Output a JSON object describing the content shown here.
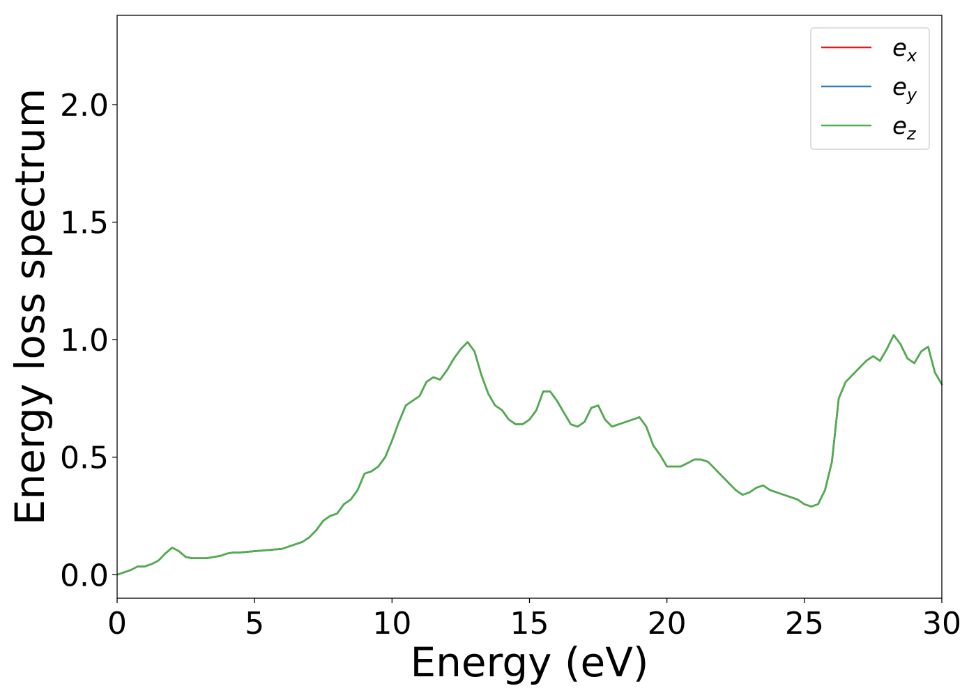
{
  "chart_data": {
    "type": "line",
    "title": "",
    "xlabel": "Energy (eV)",
    "ylabel": "Energy loss spectrum",
    "xlim": [
      0,
      30
    ],
    "ylim": [
      -0.1,
      2.38
    ],
    "xticks": [
      0,
      5,
      10,
      15,
      20,
      25,
      30
    ],
    "xtick_labels": [
      "0",
      "5",
      "10",
      "15",
      "20",
      "25",
      "30"
    ],
    "yticks": [
      0.0,
      0.5,
      1.0,
      1.5,
      2.0
    ],
    "ytick_labels": [
      "0.0",
      "0.5",
      "1.0",
      "1.5",
      "2.0"
    ],
    "grid": false,
    "legend_position": "top-right",
    "x": [
      0,
      0.25,
      0.5,
      0.75,
      1.0,
      1.25,
      1.5,
      1.75,
      2.0,
      2.25,
      2.5,
      2.75,
      3.0,
      3.25,
      3.5,
      3.75,
      4.0,
      4.25,
      4.5,
      5.0,
      5.5,
      6.0,
      6.5,
      6.75,
      7.0,
      7.25,
      7.5,
      7.75,
      8.0,
      8.25,
      8.5,
      8.75,
      9.0,
      9.25,
      9.5,
      9.75,
      10.0,
      10.25,
      10.5,
      10.75,
      11.0,
      11.25,
      11.5,
      11.75,
      12.0,
      12.25,
      12.5,
      12.75,
      13.0,
      13.25,
      13.5,
      13.75,
      14.0,
      14.25,
      14.5,
      14.75,
      15.0,
      15.25,
      15.5,
      15.75,
      16.0,
      16.25,
      16.5,
      16.75,
      17.0,
      17.25,
      17.5,
      17.75,
      18.0,
      18.25,
      18.5,
      18.75,
      19.0,
      19.25,
      19.5,
      19.75,
      20.0,
      20.5,
      21.0,
      21.25,
      21.5,
      21.75,
      22.0,
      22.25,
      22.5,
      22.75,
      23.0,
      23.25,
      23.5,
      23.75,
      24.0,
      24.25,
      24.5,
      24.75,
      25.0,
      25.25,
      25.5,
      25.75,
      26.0,
      26.25,
      26.5,
      26.75,
      27.0,
      27.25,
      27.5,
      27.75,
      28.0,
      28.25,
      28.5,
      28.75,
      29.0,
      29.25,
      29.5,
      29.75,
      30.0
    ],
    "series": [
      {
        "name": "e_x",
        "label": "e",
        "subscript": "x",
        "color": "#e41a1c",
        "values": [
          0.0,
          0.01,
          0.02,
          0.035,
          0.035,
          0.045,
          0.06,
          0.09,
          0.115,
          0.1,
          0.075,
          0.07,
          0.07,
          0.07,
          0.075,
          0.08,
          0.09,
          0.095,
          0.095,
          0.1,
          0.105,
          0.11,
          0.13,
          0.14,
          0.16,
          0.19,
          0.23,
          0.25,
          0.26,
          0.3,
          0.32,
          0.36,
          0.43,
          0.44,
          0.46,
          0.5,
          0.57,
          0.65,
          0.72,
          0.74,
          0.76,
          0.82,
          0.84,
          0.83,
          0.87,
          0.92,
          0.96,
          0.99,
          0.95,
          0.85,
          0.77,
          0.72,
          0.7,
          0.66,
          0.64,
          0.64,
          0.66,
          0.7,
          0.78,
          0.78,
          0.74,
          0.69,
          0.64,
          0.63,
          0.65,
          0.71,
          0.72,
          0.66,
          0.63,
          0.64,
          0.65,
          0.66,
          0.67,
          0.63,
          0.55,
          0.51,
          0.46,
          0.46,
          0.49,
          0.49,
          0.48,
          0.45,
          0.42,
          0.39,
          0.36,
          0.34,
          0.35,
          0.37,
          0.38,
          0.36,
          0.35,
          0.34,
          0.33,
          0.32,
          0.3,
          0.29,
          0.3,
          0.36,
          0.48,
          0.75,
          0.82,
          0.85,
          0.88,
          0.91,
          0.93,
          0.91,
          0.96,
          1.02,
          0.98,
          0.92,
          0.9,
          0.95,
          0.97,
          0.86,
          0.81
        ]
      },
      {
        "name": "e_y",
        "label": "e",
        "subscript": "y",
        "color": "#377eb8",
        "values": [
          0.0,
          0.01,
          0.02,
          0.035,
          0.035,
          0.045,
          0.06,
          0.09,
          0.115,
          0.1,
          0.075,
          0.07,
          0.07,
          0.07,
          0.075,
          0.08,
          0.09,
          0.095,
          0.095,
          0.1,
          0.105,
          0.11,
          0.13,
          0.14,
          0.16,
          0.19,
          0.23,
          0.25,
          0.26,
          0.3,
          0.32,
          0.36,
          0.43,
          0.44,
          0.46,
          0.5,
          0.57,
          0.65,
          0.72,
          0.74,
          0.76,
          0.82,
          0.84,
          0.83,
          0.87,
          0.92,
          0.96,
          0.99,
          0.95,
          0.85,
          0.77,
          0.72,
          0.7,
          0.66,
          0.64,
          0.64,
          0.66,
          0.7,
          0.78,
          0.78,
          0.74,
          0.69,
          0.64,
          0.63,
          0.65,
          0.71,
          0.72,
          0.66,
          0.63,
          0.64,
          0.65,
          0.66,
          0.67,
          0.63,
          0.55,
          0.51,
          0.46,
          0.46,
          0.49,
          0.49,
          0.48,
          0.45,
          0.42,
          0.39,
          0.36,
          0.34,
          0.35,
          0.37,
          0.38,
          0.36,
          0.35,
          0.34,
          0.33,
          0.32,
          0.3,
          0.29,
          0.3,
          0.36,
          0.48,
          0.75,
          0.82,
          0.85,
          0.88,
          0.91,
          0.93,
          0.91,
          0.96,
          1.02,
          0.98,
          0.92,
          0.9,
          0.95,
          0.97,
          0.86,
          0.81
        ]
      },
      {
        "name": "e_z",
        "label": "e",
        "subscript": "z",
        "color": "#4daf4a",
        "values": [
          0.0,
          0.01,
          0.02,
          0.035,
          0.035,
          0.045,
          0.06,
          0.09,
          0.115,
          0.1,
          0.075,
          0.07,
          0.07,
          0.07,
          0.075,
          0.08,
          0.09,
          0.095,
          0.095,
          0.1,
          0.105,
          0.11,
          0.13,
          0.14,
          0.16,
          0.19,
          0.23,
          0.25,
          0.26,
          0.3,
          0.32,
          0.36,
          0.43,
          0.44,
          0.46,
          0.5,
          0.57,
          0.65,
          0.72,
          0.74,
          0.76,
          0.82,
          0.84,
          0.83,
          0.87,
          0.92,
          0.96,
          0.99,
          0.95,
          0.85,
          0.77,
          0.72,
          0.7,
          0.66,
          0.64,
          0.64,
          0.66,
          0.7,
          0.78,
          0.78,
          0.74,
          0.69,
          0.64,
          0.63,
          0.65,
          0.71,
          0.72,
          0.66,
          0.63,
          0.64,
          0.65,
          0.66,
          0.67,
          0.63,
          0.55,
          0.51,
          0.46,
          0.46,
          0.49,
          0.49,
          0.48,
          0.45,
          0.42,
          0.39,
          0.36,
          0.34,
          0.35,
          0.37,
          0.38,
          0.36,
          0.35,
          0.34,
          0.33,
          0.32,
          0.3,
          0.29,
          0.3,
          0.36,
          0.48,
          0.75,
          0.82,
          0.85,
          0.88,
          0.91,
          0.93,
          0.91,
          0.96,
          1.02,
          0.98,
          0.92,
          0.9,
          0.95,
          0.97,
          0.86,
          0.81
        ]
      }
    ]
  }
}
